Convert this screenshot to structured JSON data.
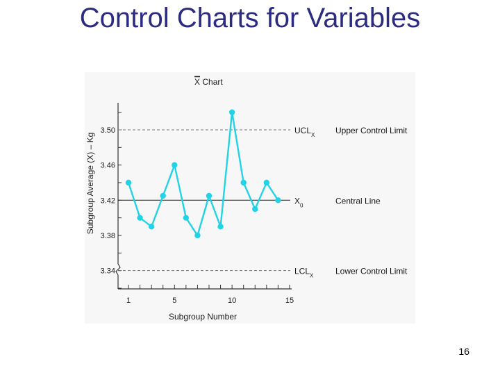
{
  "slide": {
    "title": "Control Charts for Variables",
    "page_number": "16"
  },
  "chart_data": {
    "type": "line",
    "title": "X Chart",
    "xlabel": "Subgroup Number",
    "ylabel": "Subgroup Average (X) – Kg",
    "x": [
      1,
      2,
      3,
      4,
      5,
      6,
      7,
      8,
      9,
      10,
      11,
      12,
      13,
      14
    ],
    "series": [
      {
        "values": [
          3.44,
          3.4,
          3.39,
          3.425,
          3.46,
          3.4,
          3.38,
          3.425,
          3.39,
          3.52,
          3.44,
          3.41,
          3.44,
          3.42
        ]
      }
    ],
    "x_ticks": [
      1,
      5,
      10,
      15
    ],
    "y_ticks": [
      3.34,
      3.38,
      3.42,
      3.46,
      3.5
    ],
    "y_tick_labels": [
      "3.34",
      "3.38",
      "3.42",
      "3.46",
      "3.50"
    ],
    "xlim": [
      1,
      15
    ],
    "ylim": [
      3.32,
      3.53
    ],
    "lines": [
      {
        "value": 3.5,
        "label": "UCL",
        "sub": "X",
        "description": "Upper Control Limit",
        "style": "dashed"
      },
      {
        "value": 3.42,
        "label": "X",
        "sub": "0",
        "description": "Central Line",
        "style": "solid"
      },
      {
        "value": 3.34,
        "label": "LCL",
        "sub": "X",
        "description": "Lower Control Limit",
        "style": "dashed"
      }
    ],
    "colors": {
      "series": "#22d3e6",
      "axis": "#333333",
      "limit_line": "#777777",
      "center_line": "#333333"
    },
    "grid": false
  }
}
